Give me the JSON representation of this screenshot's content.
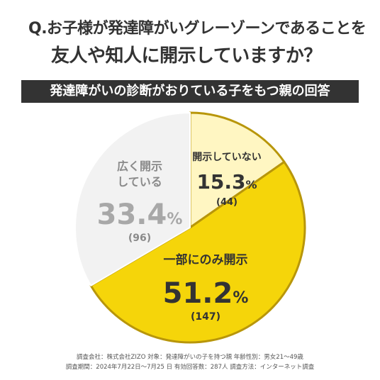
{
  "header": {
    "question_line1": "Q.お子様が発達障がいグレーゾーンであることを",
    "question_line2": "友人や知人に開示していますか？",
    "banner": "発達障がいの診断がおりている子をもつ親の回答"
  },
  "chart_data": {
    "type": "pie",
    "title": "発達障がいの診断がおりている子をもつ親の回答",
    "slices": [
      {
        "label": "開示していない",
        "label_lines": [
          "開示していない"
        ],
        "value": 15.3,
        "count": "(44)",
        "color": "#fff6c2"
      },
      {
        "label": "一部にのみ開示",
        "label_lines": [
          "一部にのみ開示"
        ],
        "value": 51.2,
        "count": "(147)",
        "color": "#f5d50a"
      },
      {
        "label": "広く開示している",
        "label_lines": [
          "広く開示",
          "している"
        ],
        "value": 33.4,
        "count": "(96)",
        "color": "#f2f2f2"
      }
    ],
    "value_suffix": "%",
    "border_color": "#b8960a",
    "start_angle_deg": 0,
    "direction": "clockwise"
  },
  "footer": {
    "line1": "調査会社：株式会社ZIZO 対象：発達障がいの子を持つ親 年齢性別：男女21〜49歳",
    "line2": "調査期間：2024年7月22日〜7月25 日 有効回答数：287人 調査方法：インターネット調査"
  }
}
